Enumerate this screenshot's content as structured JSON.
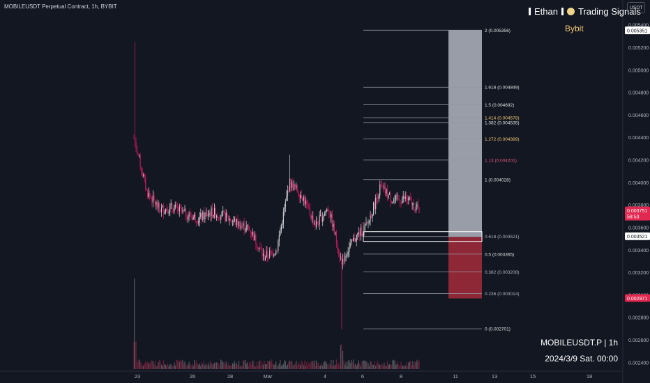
{
  "header": {
    "title": "MOBILEUSDT Perpetual Contract, 1h, BYBIT",
    "brand_left": "Ethan",
    "brand_right": "Trading Signals",
    "exchange": "Bybit",
    "currency": "USDT"
  },
  "footer": {
    "symbol_timeframe": "MOBILEUSDT.P | 1h",
    "datetime": "2024/3/9 Sat. 00:00"
  },
  "chart_data": {
    "type": "candlestick",
    "symbol": "MOBILEUSDT",
    "interval": "1h",
    "colors": {
      "up": "#c8c8cc",
      "down": "#c2185b",
      "background": "#131722"
    },
    "x_ticks": [
      "23",
      "26",
      "28",
      "Mar",
      "4",
      "6",
      "8",
      "11",
      "13",
      "15",
      "18"
    ],
    "y_ticks": [
      "0.005400",
      "0.005200",
      "0.005000",
      "0.004800",
      "0.004600",
      "0.004400",
      "0.004200",
      "0.004000",
      "0.003800",
      "0.003600",
      "0.003400",
      "0.003200",
      "0.003000",
      "0.002800",
      "0.002600",
      "0.002400"
    ],
    "ylim": [
      0.00238,
      0.00542
    ],
    "price_path": [
      {
        "t": "23",
        "low": 0.00385,
        "high": 0.00525,
        "close": 0.0044
      },
      {
        "t": "23",
        "low": 0.0038,
        "high": 0.0044,
        "close": 0.00392
      },
      {
        "t": "24",
        "low": 0.00368,
        "high": 0.00392,
        "close": 0.00376
      },
      {
        "t": "25",
        "low": 0.00368,
        "high": 0.00384,
        "close": 0.00378
      },
      {
        "t": "26",
        "low": 0.00364,
        "high": 0.00384,
        "close": 0.00372
      },
      {
        "t": "27",
        "low": 0.0036,
        "high": 0.0038,
        "close": 0.00368
      },
      {
        "t": "28",
        "low": 0.0036,
        "high": 0.00384,
        "close": 0.00374
      },
      {
        "t": "29",
        "low": 0.0036,
        "high": 0.00384,
        "close": 0.0037
      },
      {
        "t": "Mar",
        "low": 0.00358,
        "high": 0.00376,
        "close": 0.00364
      },
      {
        "t": "2",
        "low": 0.00346,
        "high": 0.00368,
        "close": 0.00358
      },
      {
        "t": "3",
        "low": 0.0032,
        "high": 0.00346,
        "close": 0.00334
      },
      {
        "t": "3",
        "low": 0.00326,
        "high": 0.00348,
        "close": 0.0034
      },
      {
        "t": "4",
        "low": 0.0034,
        "high": 0.00425,
        "close": 0.004
      },
      {
        "t": "4",
        "low": 0.00378,
        "high": 0.004,
        "close": 0.00388
      },
      {
        "t": "5",
        "low": 0.00355,
        "high": 0.00385,
        "close": 0.00362
      },
      {
        "t": "5",
        "low": 0.0036,
        "high": 0.00388,
        "close": 0.00378
      },
      {
        "t": "6",
        "low": 0.0027,
        "high": 0.0038,
        "close": 0.0033
      },
      {
        "t": "6",
        "low": 0.0033,
        "high": 0.0036,
        "close": 0.0035
      },
      {
        "t": "7",
        "low": 0.00345,
        "high": 0.00375,
        "close": 0.00362
      },
      {
        "t": "7",
        "low": 0.00362,
        "high": 0.00402,
        "close": 0.00396
      },
      {
        "t": "8",
        "low": 0.00378,
        "high": 0.004,
        "close": 0.00384
      },
      {
        "t": "8",
        "low": 0.0038,
        "high": 0.00396,
        "close": 0.00386
      },
      {
        "t": "9",
        "low": 0.00373,
        "high": 0.0039,
        "close": 0.00375
      }
    ],
    "fib_levels": [
      {
        "label": "2 (0.005356)",
        "value": 0.005356,
        "color": "#e0e0e0"
      },
      {
        "label": "1.618 (0.004849)",
        "value": 0.004849,
        "color": "#e0e0e0"
      },
      {
        "label": "1.5 (0.004692)",
        "value": 0.004692,
        "color": "#e0e0e0"
      },
      {
        "label": "1.414 (0.004578)",
        "value": 0.004578,
        "color": "#f0c674"
      },
      {
        "label": "1.382 (0.004535)",
        "value": 0.004535,
        "color": "#e0e0e0"
      },
      {
        "label": "1.272 (0.004389)",
        "value": 0.004389,
        "color": "#f0c674"
      },
      {
        "label": "1.13 (0.004201)",
        "value": 0.004201,
        "color": "#e05a7a"
      },
      {
        "label": "1 (0.004028)",
        "value": 0.004028,
        "color": "#e0e0e0"
      },
      {
        "label": "0.618 (0.003521)",
        "value": 0.003521,
        "color": "#b0b3bb"
      },
      {
        "label": "0.5 (0.003365)",
        "value": 0.003365,
        "color": "#e0e0e0"
      },
      {
        "label": "0.382 (0.003208)",
        "value": 0.003208,
        "color": "#b0b3bb"
      },
      {
        "label": "0.236 (0.003014)",
        "value": 0.003014,
        "color": "#b0b3bb"
      },
      {
        "label": "0 (0.002701)",
        "value": 0.002701,
        "color": "#e0e0e0"
      }
    ],
    "position": {
      "entry": 0.003521,
      "target": 0.005356,
      "stop": 0.002971,
      "target_color": "#b2b5be",
      "stop_color": "#9c2a3a"
    },
    "price_tags": [
      {
        "label": "0.005351",
        "value": 0.005351,
        "bg": "#ffffff",
        "fg": "#131722"
      },
      {
        "label": "0.003751",
        "value": 0.003751,
        "bg": "#e02850",
        "fg": "#ffffff",
        "sub": "58:53"
      },
      {
        "label": "0.003521",
        "value": 0.003521,
        "bg": "#ffffff",
        "fg": "#131722"
      },
      {
        "label": "0.002971",
        "value": 0.002971,
        "bg": "#e02850",
        "fg": "#ffffff"
      }
    ]
  }
}
